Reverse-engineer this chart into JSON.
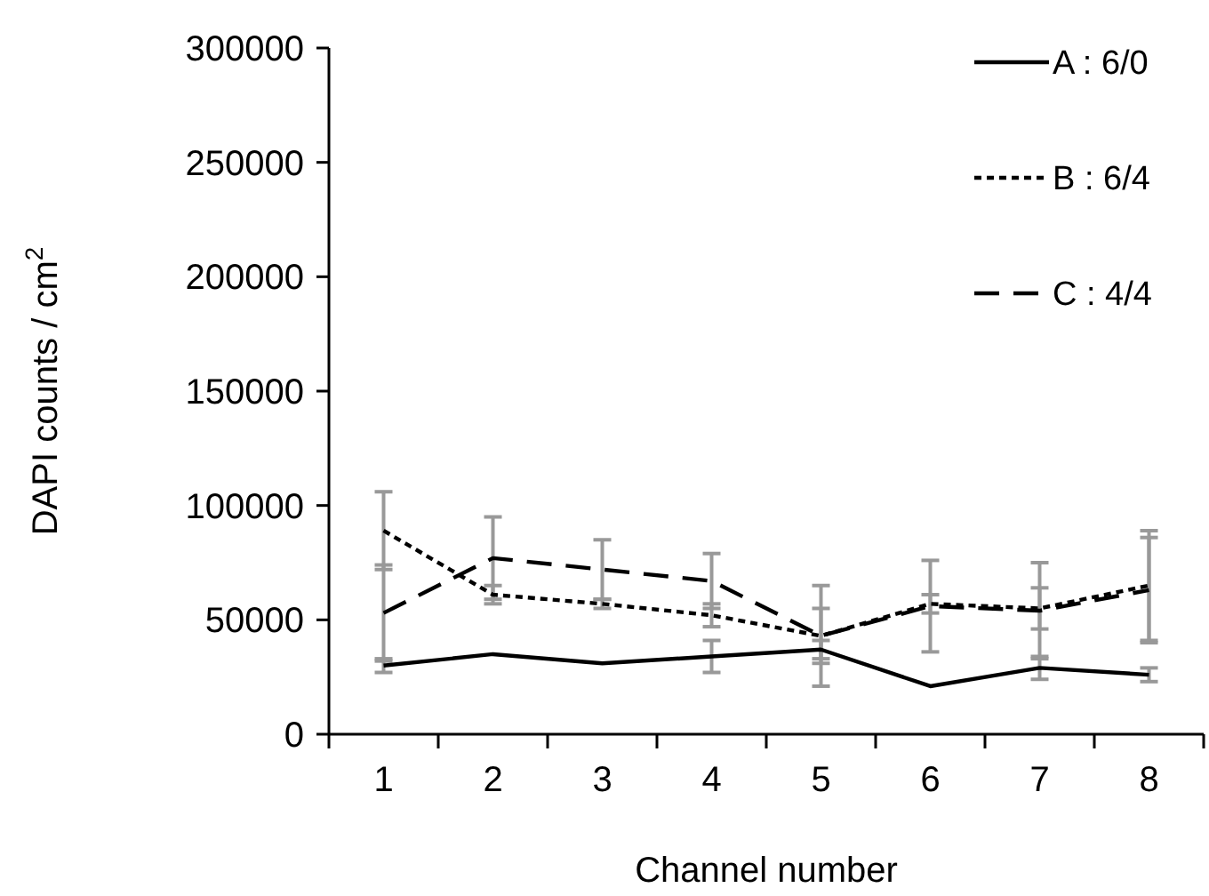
{
  "chart_data": {
    "type": "line",
    "xlabel": "Channel number",
    "ylabel": "DAPI counts / cm$^{2}$",
    "categories": [
      "1",
      "2",
      "3",
      "4",
      "5",
      "6",
      "7",
      "8"
    ],
    "ylim": [
      0,
      300000
    ],
    "yticks": [
      0,
      50000,
      100000,
      150000,
      200000,
      250000,
      300000
    ],
    "grid": false,
    "legend": "top right",
    "marker": "none",
    "series": [
      {
        "name": "A : 6/0",
        "color": "#000000",
        "line_style": "solid",
        "values": [
          30000,
          35000,
          31000,
          34000,
          37000,
          21000,
          29000,
          26000
        ],
        "errors": [
          3000,
          null,
          null,
          7000,
          4000,
          null,
          5000,
          3000
        ]
      },
      {
        "name": "B : 6/4",
        "color": "#000000",
        "line_style": "dotted",
        "values": [
          89000,
          61000,
          57000,
          52000,
          43000,
          57000,
          55000,
          65000
        ],
        "errors": [
          17000,
          4000,
          2000,
          5000,
          12000,
          4000,
          9000,
          24000
        ]
      },
      {
        "name": "C : 4/4",
        "color": "#000000",
        "line_style": "dashed",
        "values": [
          53000,
          77000,
          72000,
          67000,
          43000,
          56000,
          54000,
          63000
        ],
        "errors": [
          21000,
          18000,
          13000,
          12000,
          22000,
          20000,
          21000,
          23000
        ]
      }
    ]
  }
}
